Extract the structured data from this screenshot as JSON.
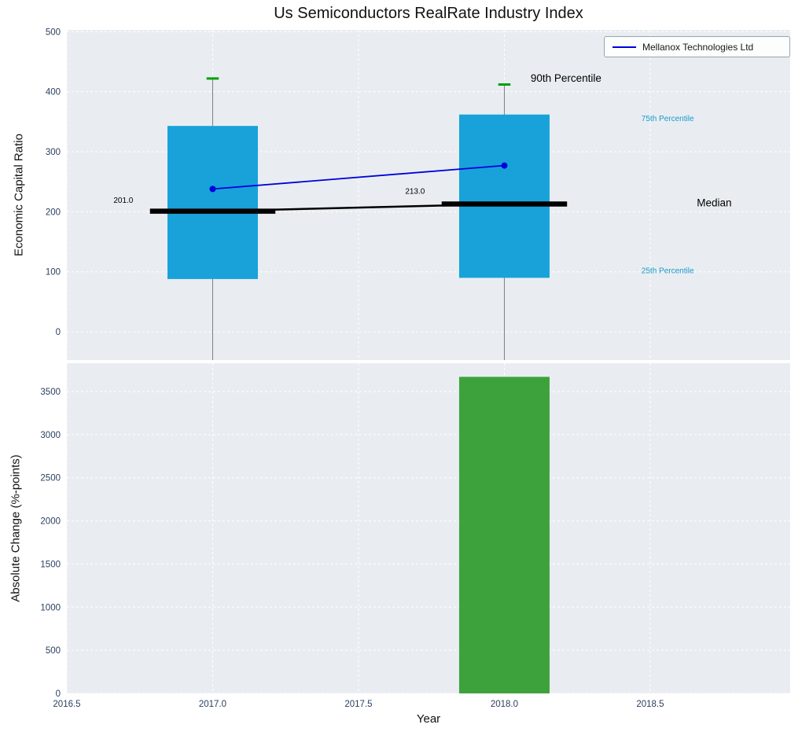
{
  "title": "Us Semiconductors RealRate Industry Index",
  "legend": {
    "label": "Mellanox Technologies Ltd"
  },
  "colors": {
    "plot_bg": "#e9edf1",
    "grid": "#ffffff",
    "box_fill": "#18a2d9",
    "bar_fill": "#3ea23c",
    "series_line": "#0000dd",
    "median": "#000000",
    "whisker": "#7f7f7f",
    "cap": "#00a000",
    "tick_text": "#2a3f5f",
    "percentile_text": "#1899cc"
  },
  "chart_data": [
    {
      "type": "box",
      "ylabel": "Economic Capital Ratio",
      "ylim": [
        -47,
        503
      ],
      "yticks": [
        0,
        100,
        200,
        300,
        400,
        500
      ],
      "xlim": [
        2016.5,
        2018.98
      ],
      "xticks": [
        2016.5,
        2017.0,
        2017.5,
        2018.0,
        2018.5
      ],
      "xtick_labels": [
        "2016.5",
        "2017.0",
        "2017.5",
        "2018.0",
        "2018.5"
      ],
      "box_half_width": 0.155,
      "median_half_width": 0.215,
      "cap_half_width": 0.021,
      "boxes": [
        {
          "x": 2017,
          "q1": 88,
          "q3": 343,
          "median": 201,
          "whisker_high": 422,
          "label": "201.0",
          "label_x": 2016.66,
          "label_y": 219
        },
        {
          "x": 2018,
          "q1": 90,
          "q3": 362,
          "median": 213,
          "whisker_high": 412,
          "label": "213.0",
          "label_x": 2017.66,
          "label_y": 234
        }
      ],
      "series": {
        "name": "Mellanox Technologies Ltd",
        "x": [
          2017,
          2018
        ],
        "y": [
          238,
          277
        ]
      },
      "annotations": [
        {
          "text": "90th Percentile",
          "x": 2018.09,
          "y": 423,
          "size": 13.5,
          "color": "#000000"
        },
        {
          "text": "75th Percentile",
          "x": 2018.47,
          "y": 356,
          "size": 10,
          "color": "#1899cc"
        },
        {
          "text": "Median",
          "x": 2018.66,
          "y": 215,
          "size": 13.5,
          "color": "#000000"
        },
        {
          "text": "25th Percentile",
          "x": 2018.47,
          "y": 102,
          "size": 10,
          "color": "#1899cc"
        }
      ]
    },
    {
      "type": "bar",
      "xlabel": "Year",
      "ylabel": "Absolute Change (%-points)",
      "ylim": [
        0,
        3828
      ],
      "yticks": [
        0,
        500,
        1000,
        1500,
        2000,
        2500,
        3000,
        3500
      ],
      "bar_half_width": 0.155,
      "bars": [
        {
          "x": 2018,
          "value": 3670
        }
      ]
    }
  ]
}
